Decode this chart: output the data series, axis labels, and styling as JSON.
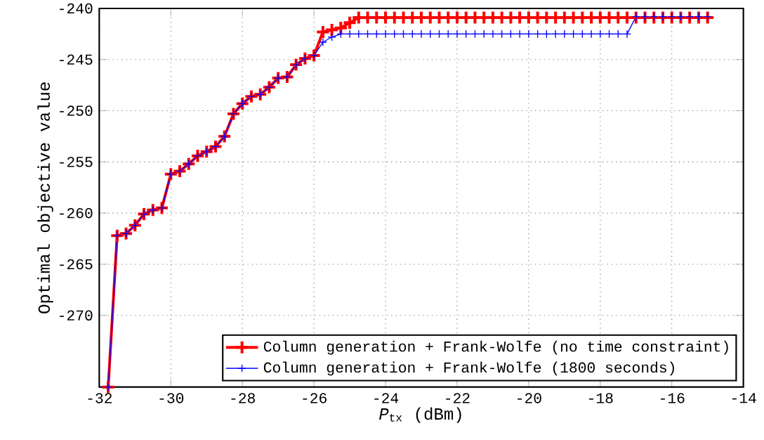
{
  "chart_data": {
    "type": "line",
    "xlabel": "*P*$_{tx}$ (dBm)",
    "ylabel": "Optimal objective value",
    "xlim": [
      -32,
      -14
    ],
    "ylim": [
      -277,
      -240
    ],
    "xticks": [
      -32,
      -30,
      -28,
      -26,
      -24,
      -22,
      -20,
      -18,
      -16,
      -14
    ],
    "yticks": [
      -270,
      -265,
      -260,
      -255,
      -250,
      -245,
      -240
    ],
    "grid": true,
    "legend": "bottom",
    "marker": "cross",
    "line_style": "solid",
    "x": [
      -31.75,
      -31.5,
      -31.25,
      -31,
      -30.75,
      -30.5,
      -30.25,
      -30,
      -29.75,
      -29.5,
      -29.25,
      -29,
      -28.75,
      -28.5,
      -28.25,
      -28,
      -27.75,
      -27.5,
      -27.25,
      -27,
      -26.75,
      -26.5,
      -26.25,
      -26,
      -25.75,
      -25.5,
      -25.25,
      -25,
      -24.75,
      -24.5,
      -24.25,
      -24,
      -23.75,
      -23.5,
      -23.25,
      -23,
      -22.75,
      -22.5,
      -22.25,
      -22,
      -21.75,
      -21.5,
      -21.25,
      -21,
      -20.75,
      -20.5,
      -20.25,
      -20,
      -19.75,
      -19.5,
      -19.25,
      -19,
      -18.75,
      -18.5,
      -18.25,
      -18,
      -17.75,
      -17.5,
      -17.25,
      -17,
      -16.75,
      -16.5,
      -16.25,
      -16,
      -15.75,
      -15.5,
      -15.25,
      -15
    ],
    "series": [
      {
        "name": "Column generation + Frank-Wolfe (no time constraint)",
        "color": "#ff0000",
        "values": [
          -277,
          -262.2,
          -262.0,
          -261.2,
          -260.1,
          -259.7,
          -259.5,
          -256.2,
          -255.9,
          -255.2,
          -254.4,
          -254.0,
          -253.5,
          -252.5,
          -250.3,
          -249.3,
          -248.6,
          -248.4,
          -247.7,
          -246.8,
          -246.7,
          -245.5,
          -244.9,
          -244.6,
          -242.3,
          -242.1,
          -241.9,
          -241.4,
          -240.9,
          -240.9,
          -240.9,
          -240.9,
          -240.9,
          -240.9,
          -240.9,
          -240.9,
          -240.9,
          -240.9,
          -240.9,
          -240.9,
          -240.9,
          -240.9,
          -240.9,
          -240.9,
          -240.9,
          -240.9,
          -240.9,
          -240.9,
          -240.9,
          -240.9,
          -240.9,
          -240.9,
          -240.9,
          -240.9,
          -240.9,
          -240.9,
          -240.9,
          -240.9,
          -240.9,
          -240.9,
          -240.9,
          -240.9,
          -240.9,
          -240.9,
          -240.9,
          -240.9,
          -240.9,
          -240.9
        ]
      },
      {
        "name": "Column generation + Frank-Wolfe (1800 seconds)",
        "color": "#0000ff",
        "values": [
          -277,
          -262.2,
          -262.0,
          -261.2,
          -260.1,
          -259.7,
          -259.5,
          -256.2,
          -255.9,
          -255.2,
          -254.4,
          -254.0,
          -253.5,
          -252.5,
          -250.3,
          -249.3,
          -248.6,
          -248.4,
          -247.7,
          -246.8,
          -246.7,
          -245.5,
          -244.9,
          -244.6,
          -243.3,
          -242.8,
          -242.5,
          -242.5,
          -242.5,
          -242.5,
          -242.5,
          -242.5,
          -242.5,
          -242.5,
          -242.5,
          -242.5,
          -242.5,
          -242.5,
          -242.5,
          -242.5,
          -242.5,
          -242.5,
          -242.5,
          -242.5,
          -242.5,
          -242.5,
          -242.5,
          -242.5,
          -242.5,
          -242.5,
          -242.5,
          -242.5,
          -242.5,
          -242.5,
          -242.5,
          -242.5,
          -242.5,
          -242.5,
          -242.5,
          -240.8,
          -240.8,
          -240.8,
          -240.8,
          -240.8,
          -240.8,
          -240.8,
          -240.8,
          -240.8
        ]
      }
    ]
  }
}
